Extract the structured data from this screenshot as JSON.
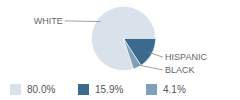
{
  "chart_data": {
    "type": "pie",
    "categories": [
      "WHITE",
      "HISPANIC",
      "BLACK"
    ],
    "values": [
      80.0,
      15.9,
      4.1
    ],
    "value_labels": [
      "80.0%",
      "15.9%",
      "4.1%"
    ],
    "colors": [
      "#d9e1ea",
      "#3c6a8f",
      "#7f9fbb"
    ],
    "tick_labels": false
  }
}
